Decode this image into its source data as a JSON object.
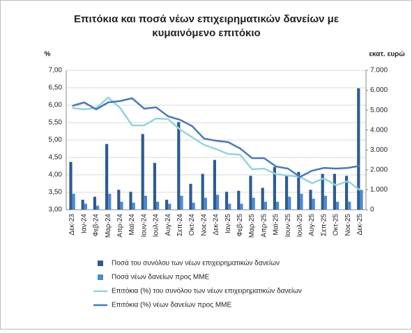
{
  "chart_data": {
    "type": "bar-line",
    "title": [
      "Επιτόκια και ποσά νέων επιχειρηματικών δανείων με",
      "κυμαινόμενο επιτόκιο"
    ],
    "y_label": "%",
    "y2_label": "εκατ. ευρώ",
    "categories": [
      "Δεκ-23",
      "Ιαν-24",
      "Φεβ-24",
      "Μαρ-24",
      "Απρ-24",
      "Μαϊ-24",
      "Ιουν-24",
      "Ιουλ-24",
      "Αυγ-24",
      "Σεπ-24",
      "Οκτ-24",
      "Νοε-24",
      "Δεκ-24",
      "Ιαν-25",
      "Φεβ-25",
      "Μαρ-25",
      "Απρ-25",
      "Μαϊ-25",
      "Ιουν-25",
      "Ιουλ-25",
      "Αυγ-25",
      "Σεπ-25",
      "Οκτ-25",
      "Νοε-25",
      "Δεκ-25"
    ],
    "series": [
      {
        "name": "Ποσά του συνόλου των νέων επιχειρηματικών δανείων",
        "type": "bar",
        "axis": "y2",
        "color": "#2f5b8e",
        "values": [
          2400,
          500,
          650,
          3300,
          1000,
          900,
          3800,
          2350,
          500,
          4400,
          1300,
          1800,
          2500,
          900,
          950,
          1700,
          1100,
          2150,
          1700,
          1900,
          1000,
          1800,
          1800,
          1700,
          6100
        ]
      },
      {
        "name": "Ποσά νέων δανείων προς ΜΜΕ",
        "type": "bar",
        "axis": "y2",
        "color": "#4f8acb",
        "values": [
          800,
          300,
          200,
          800,
          400,
          350,
          700,
          400,
          300,
          700,
          350,
          600,
          750,
          300,
          300,
          600,
          400,
          400,
          650,
          800,
          550,
          700,
          400,
          400,
          1000
        ]
      },
      {
        "name": "Επιτόκια (%) του συνόλου των νέων επιχειρηματικών δανείων",
        "type": "line",
        "axis": "y",
        "color": "#93d3dc",
        "values": [
          5.92,
          5.88,
          5.92,
          6.22,
          5.92,
          5.42,
          5.42,
          5.62,
          5.6,
          5.3,
          5.08,
          4.86,
          4.74,
          4.6,
          4.58,
          4.16,
          4.18,
          4.02,
          3.98,
          3.94,
          3.76,
          3.9,
          3.7,
          3.82,
          3.56
        ]
      },
      {
        "name": "Επιτόκια (%) νέων δανείων προς ΜΜΕ",
        "type": "line",
        "axis": "y",
        "color": "#4a78b2",
        "values": [
          5.98,
          6.08,
          5.88,
          6.08,
          6.12,
          6.2,
          5.9,
          5.94,
          5.68,
          5.58,
          5.4,
          5.04,
          4.98,
          4.94,
          4.76,
          4.48,
          4.48,
          4.24,
          4.18,
          3.94,
          4.12,
          4.2,
          4.18,
          4.2,
          4.26
        ]
      }
    ],
    "ylim": [
      3,
      7
    ],
    "yticks": [
      {
        "value": 3,
        "label": "3,00"
      },
      {
        "value": 3.5,
        "label": "3,50"
      },
      {
        "value": 4,
        "label": "4,00"
      },
      {
        "value": 4.5,
        "label": "4,50"
      },
      {
        "value": 5,
        "label": "5,00"
      },
      {
        "value": 5.5,
        "label": "5,50"
      },
      {
        "value": 6,
        "label": "6,00"
      },
      {
        "value": 6.5,
        "label": "6,50"
      },
      {
        "value": 7,
        "label": "7,00"
      }
    ],
    "y2lim": [
      0,
      7000
    ],
    "y2ticks": [
      0,
      {
        "value": 1000,
        "label": "1.000"
      },
      {
        "value": 2000,
        "label": "2.000"
      },
      {
        "value": 3000,
        "label": "3.000"
      },
      {
        "value": 4000,
        "label": "4.000"
      },
      {
        "value": 5000,
        "label": "5.000"
      },
      {
        "value": 6000,
        "label": "6.000"
      },
      {
        "value": 7000,
        "label": "7.000"
      }
    ],
    "grid": true
  }
}
